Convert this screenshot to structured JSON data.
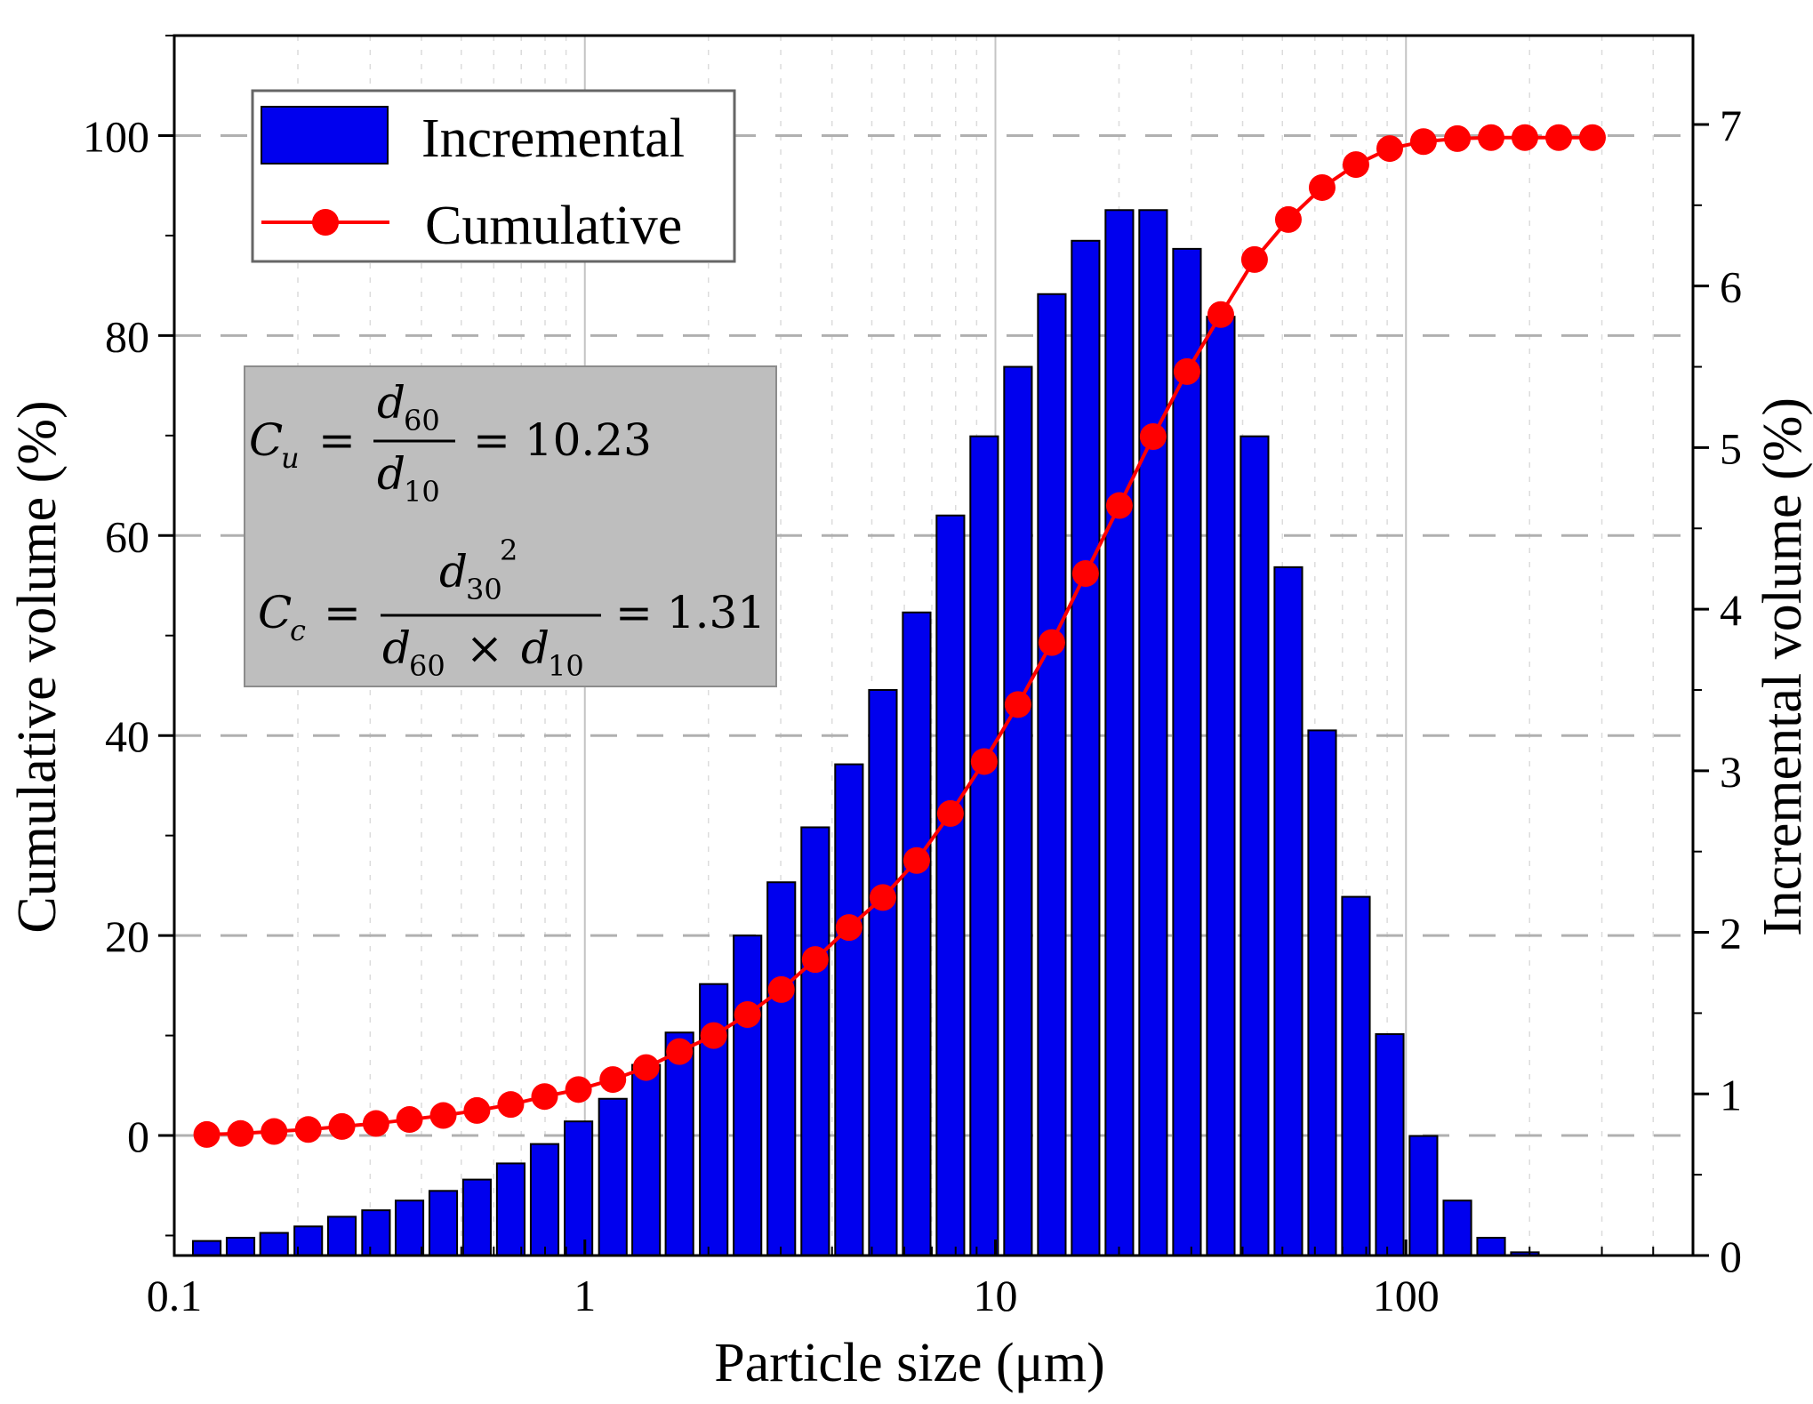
{
  "chart_data": {
    "type": "bar",
    "xlabel": "Particle size (μm)",
    "ylabel_left": "Cumulative volume (%)",
    "ylabel_right": "Incremental volume (%)",
    "x_scale": "log",
    "xlim": [
      0.1,
      500
    ],
    "x_ticks": [
      "0.1",
      "1",
      "10",
      "100"
    ],
    "ylim_left": [
      -12,
      110
    ],
    "y_ticks_left": [
      "0",
      "20",
      "40",
      "60",
      "80",
      "100"
    ],
    "ylim_right": [
      0,
      7.55
    ],
    "y_ticks_right": [
      "0",
      "1",
      "2",
      "3",
      "4",
      "5",
      "6",
      "7"
    ],
    "grid": {
      "vertical": "solid light gray at decades",
      "horizontal": "dashed gray at left-axis ticks"
    },
    "legend": {
      "position": "top-left",
      "entries": [
        {
          "label": "Incremental",
          "color": "#0000ee",
          "kind": "bar"
        },
        {
          "label": "Cumulative",
          "color": "#ff0000",
          "kind": "line-marker"
        }
      ]
    },
    "annotation": {
      "position": "left",
      "background": "#bebebe",
      "cu_label": "C",
      "cu_sub": "u",
      "cu_num": "d",
      "cu_num_sub": "60",
      "cu_den": "d",
      "cu_den_sub": "10",
      "cu_value": "= 10.23",
      "cc_label": "C",
      "cc_sub": "c",
      "cc_num": "d",
      "cc_num_sub": "30",
      "cc_num_sup": "2",
      "cc_den_a": "d",
      "cc_den_a_sub": "60",
      "cc_den_times": "×",
      "cc_den_b": "d",
      "cc_den_b_sub": "10",
      "cc_value": "= 1.31"
    },
    "colors": {
      "incremental": "#0000ee",
      "cumulative": "#ff0000",
      "grid": "#b5b5b5"
    },
    "series": [
      {
        "name": "Incremental",
        "axis": "right",
        "type": "bar",
        "x": [
          0.12,
          0.145,
          0.175,
          0.212,
          0.256,
          0.31,
          0.374,
          0.452,
          0.546,
          0.66,
          0.798,
          0.965,
          1.17,
          1.41,
          1.7,
          2.06,
          2.49,
          3.01,
          3.64,
          4.4,
          5.32,
          6.43,
          7.77,
          9.39,
          11.35,
          13.72,
          16.58,
          20.04,
          24.22,
          29.28,
          35.39,
          42.77,
          51.7,
          62.49,
          75.53,
          91.29,
          110.3,
          133.4,
          161.2,
          194.8
        ],
        "values": [
          0.09,
          0.11,
          0.14,
          0.18,
          0.24,
          0.28,
          0.34,
          0.4,
          0.47,
          0.57,
          0.69,
          0.83,
          0.97,
          1.18,
          1.38,
          1.68,
          1.98,
          2.31,
          2.65,
          3.04,
          3.5,
          3.98,
          4.58,
          5.07,
          5.5,
          5.95,
          6.28,
          6.47,
          6.47,
          6.23,
          5.81,
          5.07,
          4.26,
          3.25,
          2.22,
          1.37,
          0.74,
          0.34,
          0.11,
          0.02
        ]
      },
      {
        "name": "Cumulative",
        "axis": "left",
        "type": "line",
        "x": [
          0.12,
          0.145,
          0.175,
          0.212,
          0.256,
          0.31,
          0.374,
          0.452,
          0.546,
          0.66,
          0.798,
          0.965,
          1.17,
          1.41,
          1.7,
          2.06,
          2.49,
          3.01,
          3.64,
          4.4,
          5.32,
          6.43,
          7.77,
          9.39,
          11.35,
          13.72,
          16.58,
          20.04,
          24.22,
          29.28,
          35.39,
          42.77,
          51.7,
          62.49,
          75.53,
          91.29,
          110.3,
          133.4,
          161.2,
          194.8,
          235.5,
          284.6
        ],
        "values": [
          0.1,
          0.2,
          0.4,
          0.6,
          0.9,
          1.2,
          1.6,
          2.0,
          2.5,
          3.1,
          3.9,
          4.6,
          5.6,
          6.8,
          8.4,
          10.0,
          12.1,
          14.6,
          17.6,
          20.8,
          23.8,
          27.5,
          32.2,
          37.4,
          43.1,
          49.3,
          56.2,
          63.0,
          69.9,
          76.4,
          82.1,
          87.6,
          91.6,
          94.8,
          97.1,
          98.7,
          99.4,
          99.7,
          99.8,
          99.8,
          99.8,
          99.8
        ]
      }
    ]
  }
}
